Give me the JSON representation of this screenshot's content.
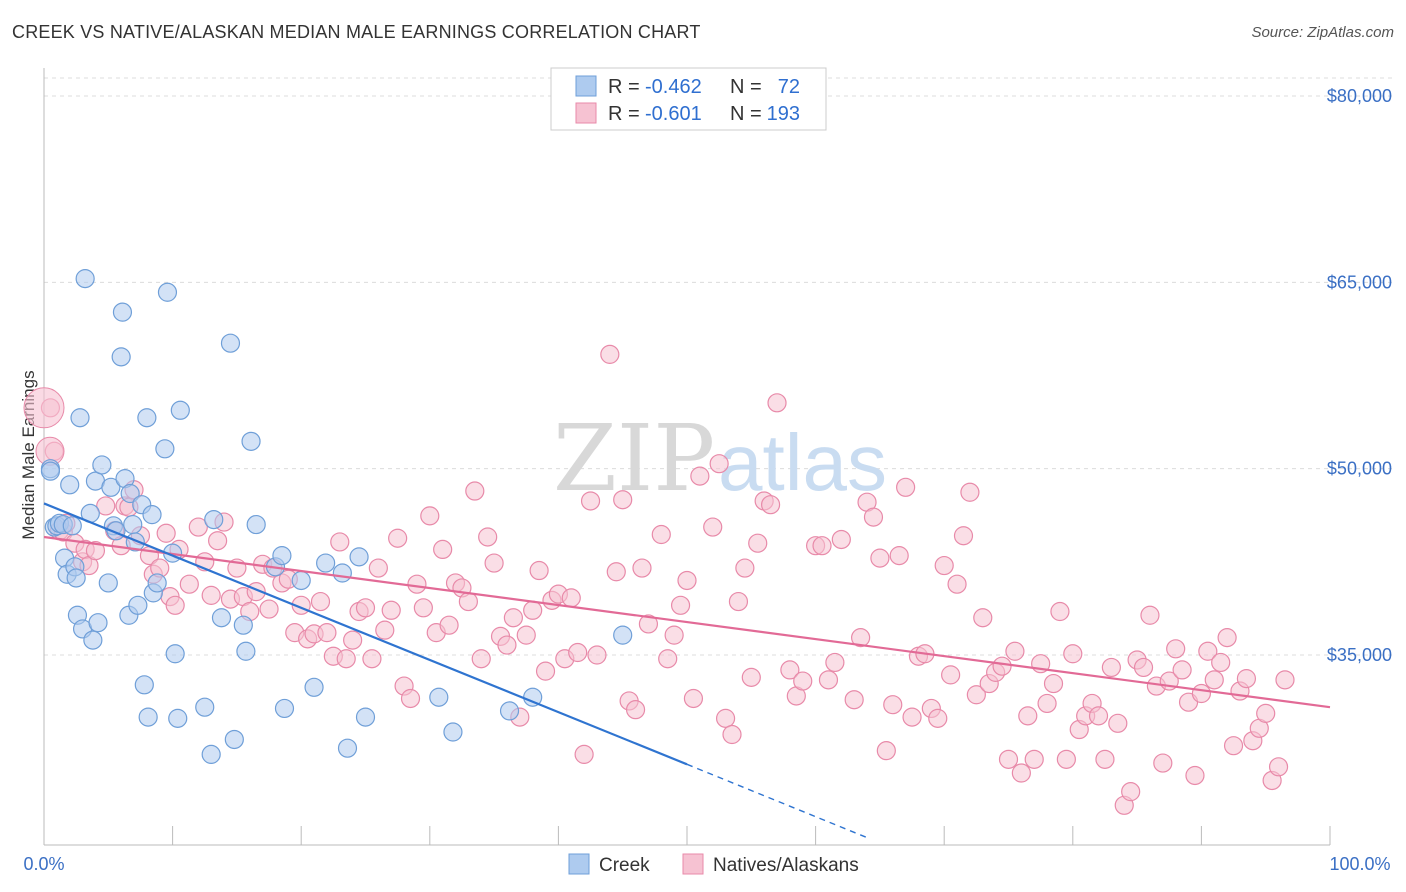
{
  "header": {
    "title": "CREEK VS NATIVE/ALASKAN MEDIAN MALE EARNINGS CORRELATION CHART",
    "source": "Source: ZipAtlas.com"
  },
  "watermark": {
    "part1": "ZIP",
    "part2": "atlas"
  },
  "legend": {
    "rows": [
      {
        "r_label": "R = ",
        "r_value": "-0.462",
        "n_label": "N = ",
        "n_value": "72"
      },
      {
        "r_label": "R = ",
        "r_value": "-0.601",
        "n_label": "N = ",
        "n_value": "193"
      }
    ]
  },
  "bottom_legend": {
    "creek": "Creek",
    "natives": "Natives/Alaskans"
  },
  "colors": {
    "creek_fill": "#aecbef",
    "creek_stroke": "#6f9fd8",
    "creek_line": "#2f74d0",
    "natives_fill": "#f6c2d2",
    "natives_stroke": "#e88aa9",
    "natives_line": "#e26a96",
    "grid": "#dcdcdc",
    "axis_label": "#3a6fc4"
  },
  "chart_data": {
    "type": "scatter",
    "title": "CREEK VS NATIVE/ALASKAN MEDIAN MALE EARNINGS CORRELATION CHART",
    "xlabel": "",
    "ylabel": "Median Male Earnings",
    "xlim": [
      0,
      100
    ],
    "ylim": [
      20000,
      84000
    ],
    "x_tick_labels": [
      "0.0%",
      "100.0%"
    ],
    "y_ticks": [
      35000,
      50000,
      65000,
      80000
    ],
    "y_tick_labels": [
      "$35,000",
      "$50,000",
      "$65,000",
      "$80,000"
    ],
    "series": [
      {
        "name": "Creek",
        "r": -0.462,
        "n": 72,
        "trend": {
          "x0": 0,
          "y0": 47200,
          "x1": 50,
          "y1": 26200,
          "dash_to_x": 64,
          "dash_to_y": 20300
        },
        "points": [
          [
            0.5,
            50
          ],
          [
            0.5,
            49.8
          ],
          [
            0.8,
            45.3
          ],
          [
            1,
            45.4
          ],
          [
            1.2,
            45.6
          ],
          [
            1.5,
            45.5
          ],
          [
            1.6,
            42.8
          ],
          [
            1.8,
            41.5
          ],
          [
            2,
            48.7
          ],
          [
            2.2,
            45.4
          ],
          [
            2.4,
            42.1
          ],
          [
            2.5,
            41.2
          ],
          [
            2.6,
            38.2
          ],
          [
            2.8,
            54.1
          ],
          [
            3,
            37.1
          ],
          [
            3.2,
            65.3
          ],
          [
            3.6,
            46.4
          ],
          [
            3.8,
            36.2
          ],
          [
            4,
            49
          ],
          [
            4.2,
            37.6
          ],
          [
            4.5,
            50.3
          ],
          [
            5,
            40.8
          ],
          [
            5.2,
            48.5
          ],
          [
            5.4,
            45.4
          ],
          [
            5.6,
            45
          ],
          [
            6,
            59
          ],
          [
            6.1,
            62.6
          ],
          [
            6.3,
            49.2
          ],
          [
            6.6,
            38.2
          ],
          [
            6.7,
            48
          ],
          [
            6.9,
            45.5
          ],
          [
            7.1,
            44.1
          ],
          [
            7.3,
            39
          ],
          [
            7.6,
            47.1
          ],
          [
            7.8,
            32.6
          ],
          [
            8,
            54.1
          ],
          [
            8.1,
            30
          ],
          [
            8.4,
            46.3
          ],
          [
            8.5,
            40
          ],
          [
            8.8,
            40.8
          ],
          [
            9.4,
            51.6
          ],
          [
            9.6,
            64.2
          ],
          [
            10,
            43.2
          ],
          [
            10.2,
            35.1
          ],
          [
            10.4,
            29.9
          ],
          [
            10.6,
            54.7
          ],
          [
            12.5,
            30.8
          ],
          [
            13,
            27
          ],
          [
            13.2,
            45.9
          ],
          [
            13.8,
            38
          ],
          [
            14.5,
            60.1
          ],
          [
            14.8,
            28.2
          ],
          [
            15.5,
            37.4
          ],
          [
            15.7,
            35.3
          ],
          [
            16.1,
            52.2
          ],
          [
            16.5,
            45.5
          ],
          [
            18,
            42.1
          ],
          [
            18.5,
            43
          ],
          [
            18.7,
            30.7
          ],
          [
            20,
            41
          ],
          [
            21,
            32.4
          ],
          [
            21.9,
            42.4
          ],
          [
            23.2,
            41.6
          ],
          [
            23.6,
            27.5
          ],
          [
            24.5,
            42.9
          ],
          [
            25,
            30
          ],
          [
            30.7,
            31.6
          ],
          [
            31.8,
            28.8
          ],
          [
            36.2,
            30.5
          ],
          [
            38,
            31.6
          ],
          [
            45,
            36.6
          ]
        ]
      },
      {
        "name": "Natives/Alaskans",
        "r": -0.601,
        "n": 193,
        "trend": {
          "x0": 0,
          "y0": 44500,
          "x1": 100,
          "y1": 30800
        },
        "points": [
          [
            0.5,
            54.9
          ],
          [
            0.8,
            51.4
          ],
          [
            1.2,
            45
          ],
          [
            1.5,
            44.9
          ],
          [
            1.7,
            45.6
          ],
          [
            2.4,
            44
          ],
          [
            3,
            42.5
          ],
          [
            3.2,
            43.5
          ],
          [
            3.5,
            42.2
          ],
          [
            4,
            43.4
          ],
          [
            4.8,
            47
          ],
          [
            5.5,
            45
          ],
          [
            6,
            43.8
          ],
          [
            6.3,
            47
          ],
          [
            6.6,
            46.9
          ],
          [
            7,
            48.3
          ],
          [
            7.5,
            44.6
          ],
          [
            8.2,
            43
          ],
          [
            8.5,
            41.5
          ],
          [
            9,
            42
          ],
          [
            9.5,
            44.8
          ],
          [
            9.8,
            39.7
          ],
          [
            10.2,
            39
          ],
          [
            10.5,
            43.5
          ],
          [
            11.3,
            40.7
          ],
          [
            12,
            45.3
          ],
          [
            12.5,
            42.5
          ],
          [
            13,
            39.8
          ],
          [
            13.5,
            44.2
          ],
          [
            14,
            45.7
          ],
          [
            14.5,
            39.5
          ],
          [
            15,
            42
          ],
          [
            15.5,
            39.7
          ],
          [
            16,
            38.5
          ],
          [
            16.5,
            40.1
          ],
          [
            17,
            42.3
          ],
          [
            17.5,
            38.7
          ],
          [
            17.8,
            42
          ],
          [
            18.5,
            40.8
          ],
          [
            19,
            41.1
          ],
          [
            19.5,
            36.8
          ],
          [
            20,
            39
          ],
          [
            20.5,
            36.3
          ],
          [
            21,
            36.7
          ],
          [
            21.5,
            39.3
          ],
          [
            22,
            36.8
          ],
          [
            22.5,
            34.9
          ],
          [
            23,
            44.1
          ],
          [
            23.5,
            34.7
          ],
          [
            24,
            36.2
          ],
          [
            24.5,
            38.5
          ],
          [
            25,
            38.8
          ],
          [
            25.5,
            34.7
          ],
          [
            26,
            42
          ],
          [
            26.5,
            37
          ],
          [
            27,
            38.6
          ],
          [
            27.5,
            44.4
          ],
          [
            28,
            32.5
          ],
          [
            28.5,
            31.5
          ],
          [
            29,
            40.7
          ],
          [
            29.5,
            38.8
          ],
          [
            30,
            46.2
          ],
          [
            30.5,
            36.8
          ],
          [
            31,
            43.5
          ],
          [
            31.5,
            37.4
          ],
          [
            32,
            40.8
          ],
          [
            32.5,
            40.4
          ],
          [
            33,
            39.3
          ],
          [
            33.5,
            48.2
          ],
          [
            34,
            34.7
          ],
          [
            34.5,
            44.5
          ],
          [
            35,
            42.4
          ],
          [
            35.5,
            36.5
          ],
          [
            36,
            35.8
          ],
          [
            36.5,
            38
          ],
          [
            37,
            30
          ],
          [
            37.5,
            36.6
          ],
          [
            38,
            38.6
          ],
          [
            38.5,
            41.8
          ],
          [
            39,
            33.7
          ],
          [
            39.5,
            39.4
          ],
          [
            40,
            39.9
          ],
          [
            40.5,
            34.7
          ],
          [
            41,
            39.6
          ],
          [
            41.5,
            35.2
          ],
          [
            42,
            27
          ],
          [
            42.5,
            47.4
          ],
          [
            43,
            35
          ],
          [
            44,
            59.2
          ],
          [
            44.5,
            41.7
          ],
          [
            45,
            47.5
          ],
          [
            45.5,
            31.3
          ],
          [
            46,
            30.6
          ],
          [
            46.5,
            42
          ],
          [
            47,
            37.5
          ],
          [
            48,
            44.7
          ],
          [
            48.5,
            34.7
          ],
          [
            49,
            36.6
          ],
          [
            49.5,
            39
          ],
          [
            50,
            41
          ],
          [
            50.5,
            31.5
          ],
          [
            51,
            49.4
          ],
          [
            52,
            45.3
          ],
          [
            52.5,
            50.4
          ],
          [
            53,
            29.9
          ],
          [
            53.5,
            28.6
          ],
          [
            54,
            39.3
          ],
          [
            54.5,
            42
          ],
          [
            55,
            33.2
          ],
          [
            55.5,
            44
          ],
          [
            56,
            47.4
          ],
          [
            56.5,
            47.1
          ],
          [
            57,
            55.3
          ],
          [
            58,
            33.8
          ],
          [
            58.5,
            31.7
          ],
          [
            59,
            32.9
          ],
          [
            60,
            43.8
          ],
          [
            60.5,
            43.8
          ],
          [
            61,
            33
          ],
          [
            61.5,
            34.4
          ],
          [
            62,
            44.3
          ],
          [
            63,
            31.4
          ],
          [
            63.5,
            36.4
          ],
          [
            64,
            47.3
          ],
          [
            64.5,
            46.1
          ],
          [
            65,
            42.8
          ],
          [
            65.5,
            27.3
          ],
          [
            66,
            31
          ],
          [
            66.5,
            43
          ],
          [
            67,
            48.5
          ],
          [
            67.5,
            30
          ],
          [
            68,
            34.9
          ],
          [
            68.5,
            35.1
          ],
          [
            69,
            30.7
          ],
          [
            69.5,
            29.9
          ],
          [
            70,
            42.2
          ],
          [
            70.5,
            33.4
          ],
          [
            71,
            40.7
          ],
          [
            71.5,
            44.6
          ],
          [
            72,
            48.1
          ],
          [
            72.5,
            31.8
          ],
          [
            73,
            38
          ],
          [
            73.5,
            32.7
          ],
          [
            74,
            33.6
          ],
          [
            74.5,
            34.1
          ],
          [
            75,
            26.6
          ],
          [
            75.5,
            35.3
          ],
          [
            76,
            25.5
          ],
          [
            76.5,
            30.1
          ],
          [
            77,
            26.6
          ],
          [
            77.5,
            34.3
          ],
          [
            78,
            31.1
          ],
          [
            78.5,
            32.7
          ],
          [
            79,
            38.5
          ],
          [
            79.5,
            26.6
          ],
          [
            80,
            35.1
          ],
          [
            80.5,
            29
          ],
          [
            81,
            30.1
          ],
          [
            81.5,
            31.1
          ],
          [
            82,
            30.1
          ],
          [
            82.5,
            26.6
          ],
          [
            83,
            34
          ],
          [
            83.5,
            29.5
          ],
          [
            84,
            22.9
          ],
          [
            84.5,
            24
          ],
          [
            85,
            34.6
          ],
          [
            85.5,
            34
          ],
          [
            86,
            38.2
          ],
          [
            86.5,
            32.5
          ],
          [
            87,
            26.3
          ],
          [
            87.5,
            32.9
          ],
          [
            88,
            35.5
          ],
          [
            88.5,
            33.8
          ],
          [
            89,
            31.2
          ],
          [
            89.5,
            25.3
          ],
          [
            90,
            31.9
          ],
          [
            90.5,
            35.3
          ],
          [
            91,
            33
          ],
          [
            91.5,
            34.4
          ],
          [
            92,
            36.4
          ],
          [
            92.5,
            27.7
          ],
          [
            93,
            32.1
          ],
          [
            93.5,
            33.1
          ],
          [
            94,
            28.1
          ],
          [
            94.5,
            29.1
          ],
          [
            95,
            30.3
          ],
          [
            95.5,
            24.9
          ],
          [
            96,
            26
          ],
          [
            96.5,
            33
          ]
        ]
      }
    ]
  }
}
